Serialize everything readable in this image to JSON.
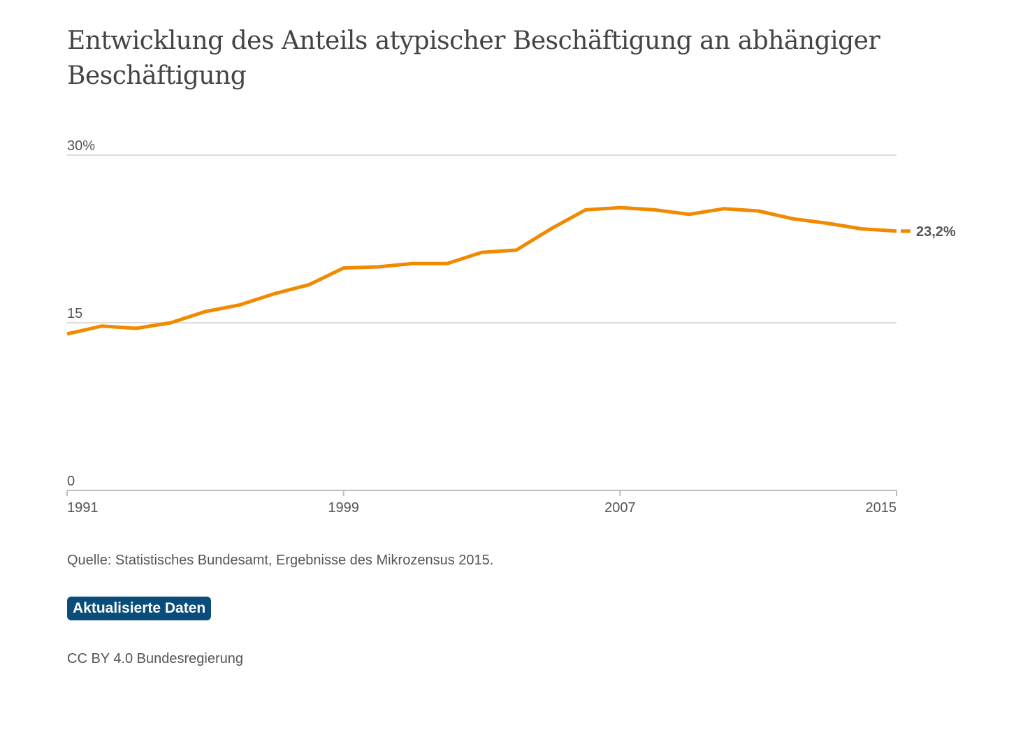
{
  "title": "Entwicklung des Anteils atypischer Beschäftigung an abhängiger Beschäftigung",
  "source_text": "Quelle: Statistisches Bundesamt, Ergebnisse des Mikrozensus 2015.",
  "update_button_label": "Aktualisierte Daten",
  "license_text": "CC BY 4.0 Bundesregierung",
  "colors": {
    "line": "#f18a00",
    "grid": "#d0d0d0",
    "button": "#0a4d7a"
  },
  "chart_data": {
    "type": "line",
    "title": "Entwicklung des Anteils atypischer Beschäftigung an abhängiger Beschäftigung",
    "xlabel": "",
    "ylabel": "",
    "x": [
      1991,
      1992,
      1993,
      1994,
      1995,
      1996,
      1997,
      1998,
      1999,
      2000,
      2001,
      2002,
      2003,
      2004,
      2005,
      2006,
      2007,
      2008,
      2009,
      2010,
      2011,
      2012,
      2013,
      2014,
      2015
    ],
    "series": [
      {
        "values": [
          14.0,
          14.7,
          14.5,
          15.0,
          16.0,
          16.6,
          17.6,
          18.4,
          19.9,
          20.0,
          20.3,
          20.3,
          21.3,
          21.5,
          23.4,
          25.1,
          25.3,
          25.1,
          24.7,
          25.2,
          25.0,
          24.3,
          23.9,
          23.4,
          23.2
        ]
      }
    ],
    "end_label": "23,2%",
    "xticks": [
      "1991",
      "1999",
      "2007",
      "2015"
    ],
    "yticks": [
      "0",
      "15",
      "30%"
    ],
    "ylim": [
      0,
      30
    ],
    "xlim": [
      1991,
      2015
    ],
    "grid": true,
    "legend": "none"
  }
}
